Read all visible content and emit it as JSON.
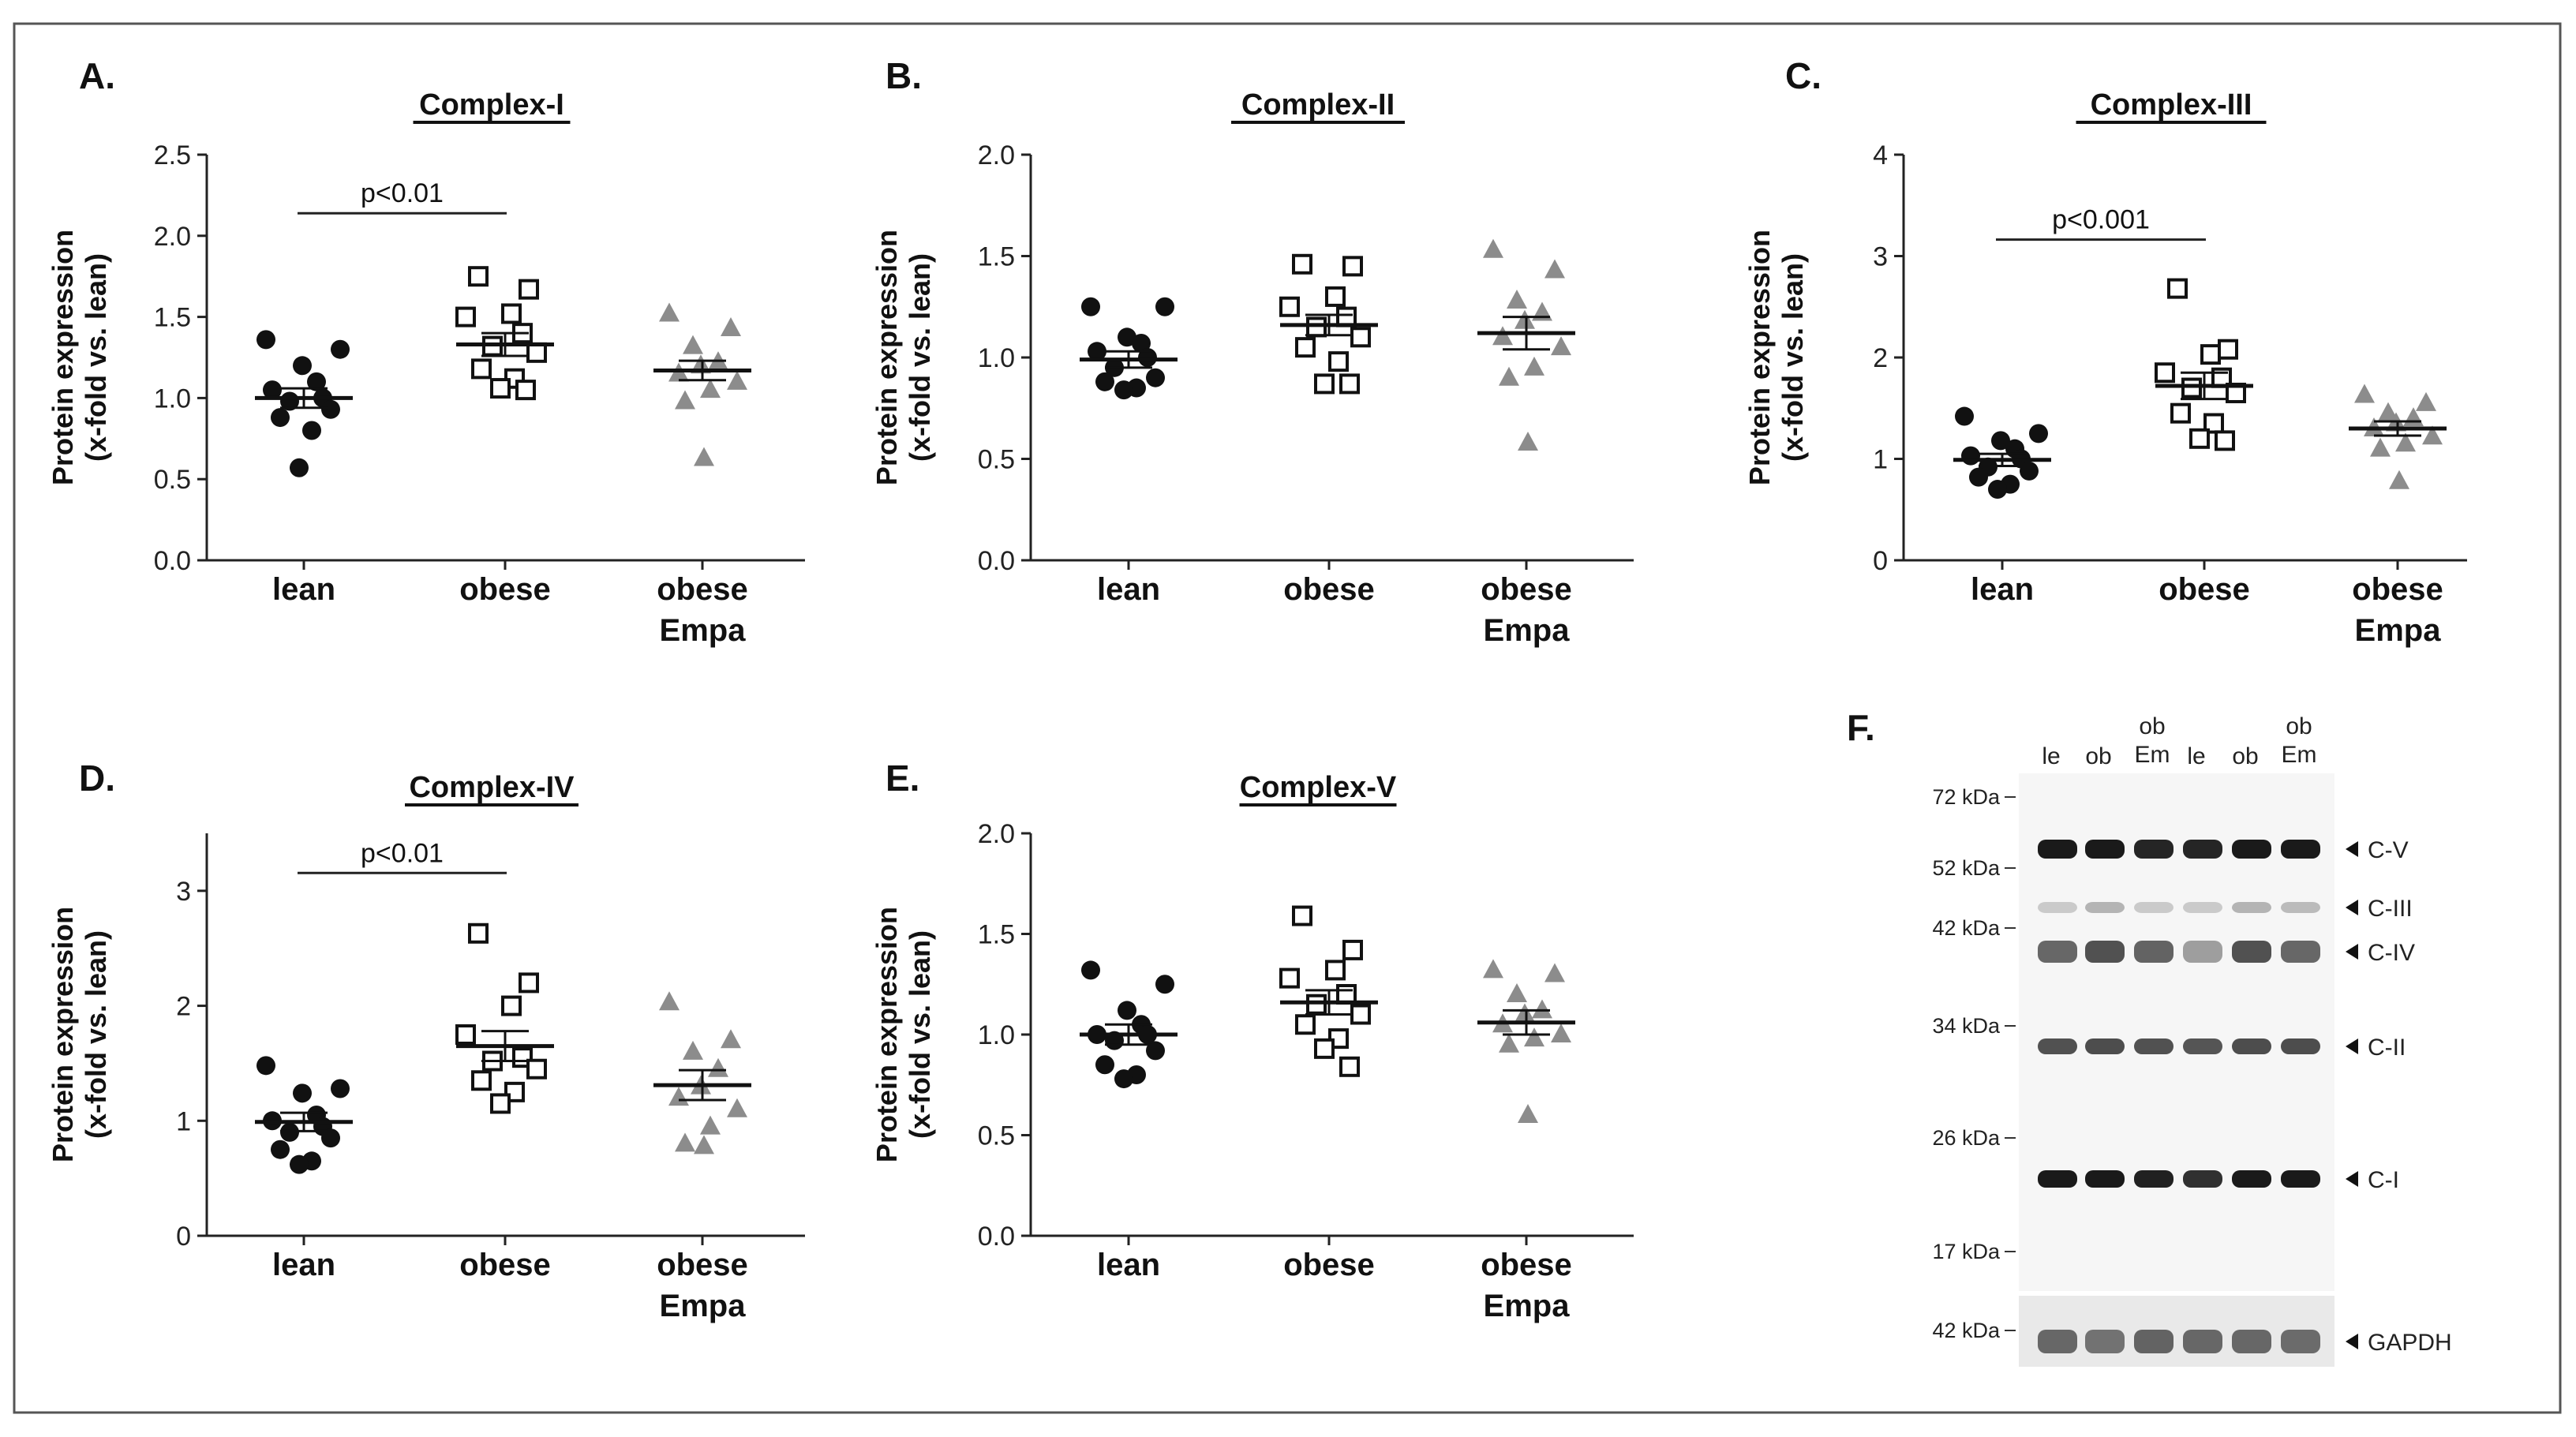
{
  "panels": [
    {
      "label": "A.",
      "title": "Complex-I"
    },
    {
      "label": "B.",
      "title": "Complex-II"
    },
    {
      "label": "C.",
      "title": "Complex-III"
    },
    {
      "label": "D.",
      "title": "Complex-IV"
    },
    {
      "label": "E.",
      "title": "Complex-V"
    },
    {
      "label": "F."
    }
  ],
  "colors": {
    "lean": "#111111",
    "obese": "#111111",
    "obese_empa": "#8c8c8c"
  },
  "chart_data": [
    {
      "type": "scatter",
      "title": "Complex-I",
      "ylabel": "Protein expression (x-fold vs. lean)",
      "ylabel_lines": [
        "Protein expression",
        "(x-fold vs. lean)"
      ],
      "ylim": [
        0,
        2.5
      ],
      "yticks": [
        "0.0",
        "0.5",
        "1.0",
        "1.5",
        "2.0",
        "2.5"
      ],
      "categories": [
        [
          "lean"
        ],
        [
          "obese"
        ],
        [
          "obese",
          "Empa"
        ]
      ],
      "series": [
        {
          "name": "lean",
          "marker": "circle",
          "mean": 1.0,
          "sem": 0.06,
          "values": [
            1.36,
            1.3,
            1.2,
            1.1,
            1.05,
            1.0,
            0.98,
            0.93,
            0.88,
            0.8,
            0.57
          ]
        },
        {
          "name": "obese",
          "marker": "square",
          "mean": 1.33,
          "sem": 0.07,
          "values": [
            1.75,
            1.67,
            1.52,
            1.5,
            1.4,
            1.32,
            1.28,
            1.18,
            1.12,
            1.06,
            1.05
          ]
        },
        {
          "name": "obese Empa",
          "marker": "triangle",
          "mean": 1.17,
          "sem": 0.06,
          "values": [
            1.52,
            1.43,
            1.32,
            1.22,
            1.2,
            1.15,
            1.1,
            1.05,
            0.98,
            0.63
          ]
        }
      ],
      "annotation": {
        "text": "p<0.01",
        "from": 0,
        "to": 1,
        "y": 2.1
      }
    },
    {
      "type": "scatter",
      "title": "Complex-II",
      "ylabel": "Protein expression (x-fold vs. lean)",
      "ylabel_lines": [
        "Protein expression",
        "(x-fold vs. lean)"
      ],
      "ylim": [
        0,
        2.0
      ],
      "yticks": [
        "0.0",
        "0.5",
        "1.0",
        "1.5",
        "2.0"
      ],
      "categories": [
        [
          "lean"
        ],
        [
          "obese"
        ],
        [
          "obese",
          "Empa"
        ]
      ],
      "series": [
        {
          "name": "lean",
          "marker": "circle",
          "mean": 0.99,
          "sem": 0.04,
          "values": [
            1.25,
            1.25,
            1.1,
            1.07,
            1.03,
            1.0,
            0.95,
            0.9,
            0.88,
            0.85,
            0.84
          ]
        },
        {
          "name": "obese",
          "marker": "square",
          "mean": 1.16,
          "sem": 0.05,
          "values": [
            1.46,
            1.45,
            1.3,
            1.25,
            1.2,
            1.15,
            1.1,
            1.05,
            0.98,
            0.87,
            0.87
          ]
        },
        {
          "name": "obese Empa",
          "marker": "triangle",
          "mean": 1.12,
          "sem": 0.08,
          "values": [
            1.53,
            1.43,
            1.28,
            1.22,
            1.18,
            1.1,
            1.05,
            0.95,
            0.9,
            0.58
          ]
        }
      ]
    },
    {
      "type": "scatter",
      "title": "Complex-III",
      "ylabel": "Protein expression (x-fold vs. lean)",
      "ylabel_lines": [
        "Protein expression",
        "(x-fold vs. lean)"
      ],
      "ylim": [
        0,
        4
      ],
      "yticks": [
        "0",
        "1",
        "2",
        "3",
        "4"
      ],
      "categories": [
        [
          "lean"
        ],
        [
          "obese"
        ],
        [
          "obese",
          "Empa"
        ]
      ],
      "series": [
        {
          "name": "lean",
          "marker": "circle",
          "mean": 0.99,
          "sem": 0.06,
          "values": [
            1.42,
            1.25,
            1.18,
            1.1,
            1.03,
            1.0,
            0.92,
            0.88,
            0.82,
            0.75,
            0.7
          ]
        },
        {
          "name": "obese",
          "marker": "square",
          "mean": 1.72,
          "sem": 0.13,
          "values": [
            2.68,
            2.08,
            2.03,
            1.85,
            1.8,
            1.7,
            1.65,
            1.45,
            1.35,
            1.2,
            1.18
          ]
        },
        {
          "name": "obese Empa",
          "marker": "triangle",
          "mean": 1.3,
          "sem": 0.07,
          "values": [
            1.63,
            1.55,
            1.45,
            1.4,
            1.35,
            1.3,
            1.22,
            1.15,
            1.1,
            0.78
          ]
        }
      ],
      "annotation": {
        "text": "p<0.001",
        "from": 0,
        "to": 1,
        "y": 3.1
      }
    },
    {
      "type": "scatter",
      "title": "Complex-IV",
      "ylabel": "Protein expression (x-fold vs. lean)",
      "ylabel_lines": [
        "Protein expression",
        "(x-fold vs. lean)"
      ],
      "ylim": [
        0,
        3.5
      ],
      "yticks": [
        "0",
        "1",
        "2",
        "3"
      ],
      "categories": [
        [
          "lean"
        ],
        [
          "obese"
        ],
        [
          "obese",
          "Empa"
        ]
      ],
      "series": [
        {
          "name": "lean",
          "marker": "circle",
          "mean": 0.99,
          "sem": 0.08,
          "values": [
            1.48,
            1.28,
            1.24,
            1.05,
            1.0,
            0.95,
            0.9,
            0.85,
            0.75,
            0.65,
            0.62
          ]
        },
        {
          "name": "obese",
          "marker": "square",
          "mean": 1.65,
          "sem": 0.13,
          "values": [
            2.63,
            2.2,
            2.0,
            1.75,
            1.55,
            1.52,
            1.45,
            1.35,
            1.25,
            1.15
          ]
        },
        {
          "name": "obese Empa",
          "marker": "triangle",
          "mean": 1.31,
          "sem": 0.13,
          "values": [
            2.03,
            1.7,
            1.6,
            1.45,
            1.3,
            1.2,
            1.1,
            0.95,
            0.8,
            0.78
          ]
        }
      ],
      "annotation": {
        "text": "p<0.01",
        "from": 0,
        "to": 1,
        "y": 3.1
      }
    },
    {
      "type": "scatter",
      "title": "Complex-V",
      "ylabel": "Protein expression (x-fold vs. lean)",
      "ylabel_lines": [
        "Protein expression",
        "(x-fold vs. lean)"
      ],
      "ylim": [
        0,
        2.0
      ],
      "yticks": [
        "0.0",
        "0.5",
        "1.0",
        "1.5",
        "2.0"
      ],
      "categories": [
        [
          "lean"
        ],
        [
          "obese"
        ],
        [
          "obese",
          "Empa"
        ]
      ],
      "series": [
        {
          "name": "lean",
          "marker": "circle",
          "mean": 1.0,
          "sem": 0.05,
          "values": [
            1.32,
            1.25,
            1.12,
            1.05,
            1.0,
            1.0,
            0.97,
            0.92,
            0.85,
            0.8,
            0.78
          ]
        },
        {
          "name": "obese",
          "marker": "square",
          "mean": 1.16,
          "sem": 0.06,
          "values": [
            1.59,
            1.42,
            1.32,
            1.28,
            1.2,
            1.15,
            1.1,
            1.05,
            0.98,
            0.93,
            0.84
          ]
        },
        {
          "name": "obese Empa",
          "marker": "triangle",
          "mean": 1.06,
          "sem": 0.06,
          "values": [
            1.32,
            1.3,
            1.2,
            1.12,
            1.1,
            1.05,
            1.0,
            0.98,
            0.95,
            0.6
          ]
        }
      ]
    }
  ],
  "blot": {
    "lanes": [
      [
        "le"
      ],
      [
        "ob"
      ],
      [
        "ob",
        "Em"
      ],
      [
        "le"
      ],
      [
        "ob"
      ],
      [
        "ob",
        "Em"
      ]
    ],
    "markers": [
      "72 kDa",
      "52 kDa",
      "42 kDa",
      "34 kDa",
      "26 kDa",
      "17 kDa",
      "42 kDa"
    ],
    "bands": [
      {
        "label": "C-V",
        "intensities": [
          0.95,
          0.95,
          0.9,
          0.9,
          0.95,
          0.95
        ]
      },
      {
        "label": "C-III",
        "intensities": [
          0.15,
          0.25,
          0.15,
          0.15,
          0.25,
          0.22
        ]
      },
      {
        "label": "C-IV",
        "intensities": [
          0.6,
          0.7,
          0.62,
          0.35,
          0.7,
          0.6
        ]
      },
      {
        "label": "C-II",
        "intensities": [
          0.7,
          0.72,
          0.7,
          0.68,
          0.72,
          0.72
        ]
      },
      {
        "label": "C-I",
        "intensities": [
          0.95,
          0.95,
          0.92,
          0.85,
          0.95,
          0.95
        ]
      },
      {
        "label": "GAPDH",
        "intensities": [
          0.6,
          0.55,
          0.62,
          0.6,
          0.6,
          0.58
        ]
      }
    ]
  }
}
